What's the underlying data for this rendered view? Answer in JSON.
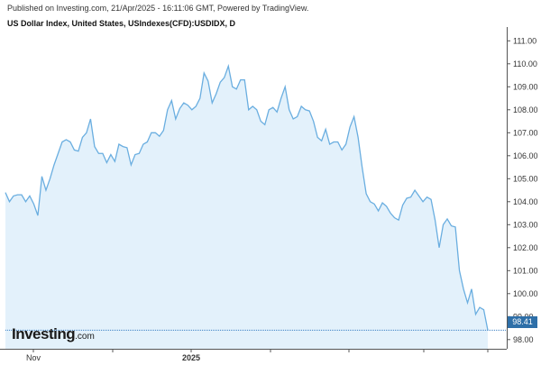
{
  "header": {
    "published": "Published on Investing.com, 21/Apr/2025 - 16:11:06 GMT, Powered by TradingView.",
    "title": "US Dollar Index, United States, USIndexes(CFD):USDIDX, D"
  },
  "logo": {
    "main": "Investing",
    "suffix": ".com"
  },
  "last_value_label": "98.41",
  "colors": {
    "line": "#6aaee0",
    "fill": "#e3f1fb",
    "badge": "#2e6fa8",
    "dotted": "#3a7fc4"
  },
  "chart_data": {
    "type": "area",
    "title": "US Dollar Index, United States, USIndexes(CFD):USDIDX, D",
    "xlabel": "",
    "ylabel": "",
    "ylim": [
      97.6,
      111.6
    ],
    "y_ticks": [
      "111.00",
      "110.00",
      "109.00",
      "108.00",
      "107.00",
      "106.00",
      "105.00",
      "104.00",
      "103.00",
      "102.00",
      "101.00",
      "100.00",
      "99.00",
      "98.00"
    ],
    "x_ticks": [
      {
        "label": "Nov",
        "bold": false
      },
      {
        "label": "2025",
        "bold": true
      }
    ],
    "last_value": 98.41,
    "series": [
      {
        "values": [
          104.4,
          104.0,
          104.25,
          104.3,
          104.3,
          104.0,
          104.25,
          103.9,
          103.4,
          105.1,
          104.5,
          105.0,
          105.6,
          106.1,
          106.6,
          106.7,
          106.6,
          106.25,
          106.2,
          106.8,
          107.0,
          107.6,
          106.4,
          106.1,
          106.1,
          105.7,
          106.05,
          105.75,
          106.5,
          106.4,
          106.35,
          105.6,
          106.05,
          106.1,
          106.5,
          106.6,
          107.0,
          107.0,
          106.85,
          107.1,
          108.0,
          108.4,
          107.6,
          108.05,
          108.3,
          108.2,
          108.0,
          108.15,
          108.5,
          109.6,
          109.25,
          108.3,
          108.7,
          109.2,
          109.4,
          109.9,
          109.0,
          108.9,
          109.3,
          109.3,
          108.0,
          108.15,
          108.0,
          107.5,
          107.35,
          108.0,
          108.1,
          107.9,
          108.5,
          109.0,
          108.0,
          107.6,
          107.7,
          108.15,
          108.0,
          107.95,
          107.5,
          106.8,
          106.65,
          107.15,
          106.5,
          106.6,
          106.6,
          106.25,
          106.5,
          107.25,
          107.7,
          106.8,
          105.5,
          104.35,
          104.0,
          103.9,
          103.6,
          103.95,
          103.8,
          103.5,
          103.3,
          103.2,
          103.85,
          104.15,
          104.2,
          104.5,
          104.25,
          104.0,
          104.2,
          104.1,
          103.2,
          102.0,
          103.0,
          103.25,
          102.95,
          102.9,
          101.0,
          100.2,
          99.6,
          100.2,
          99.1,
          99.4,
          99.3,
          98.41
        ]
      }
    ]
  }
}
